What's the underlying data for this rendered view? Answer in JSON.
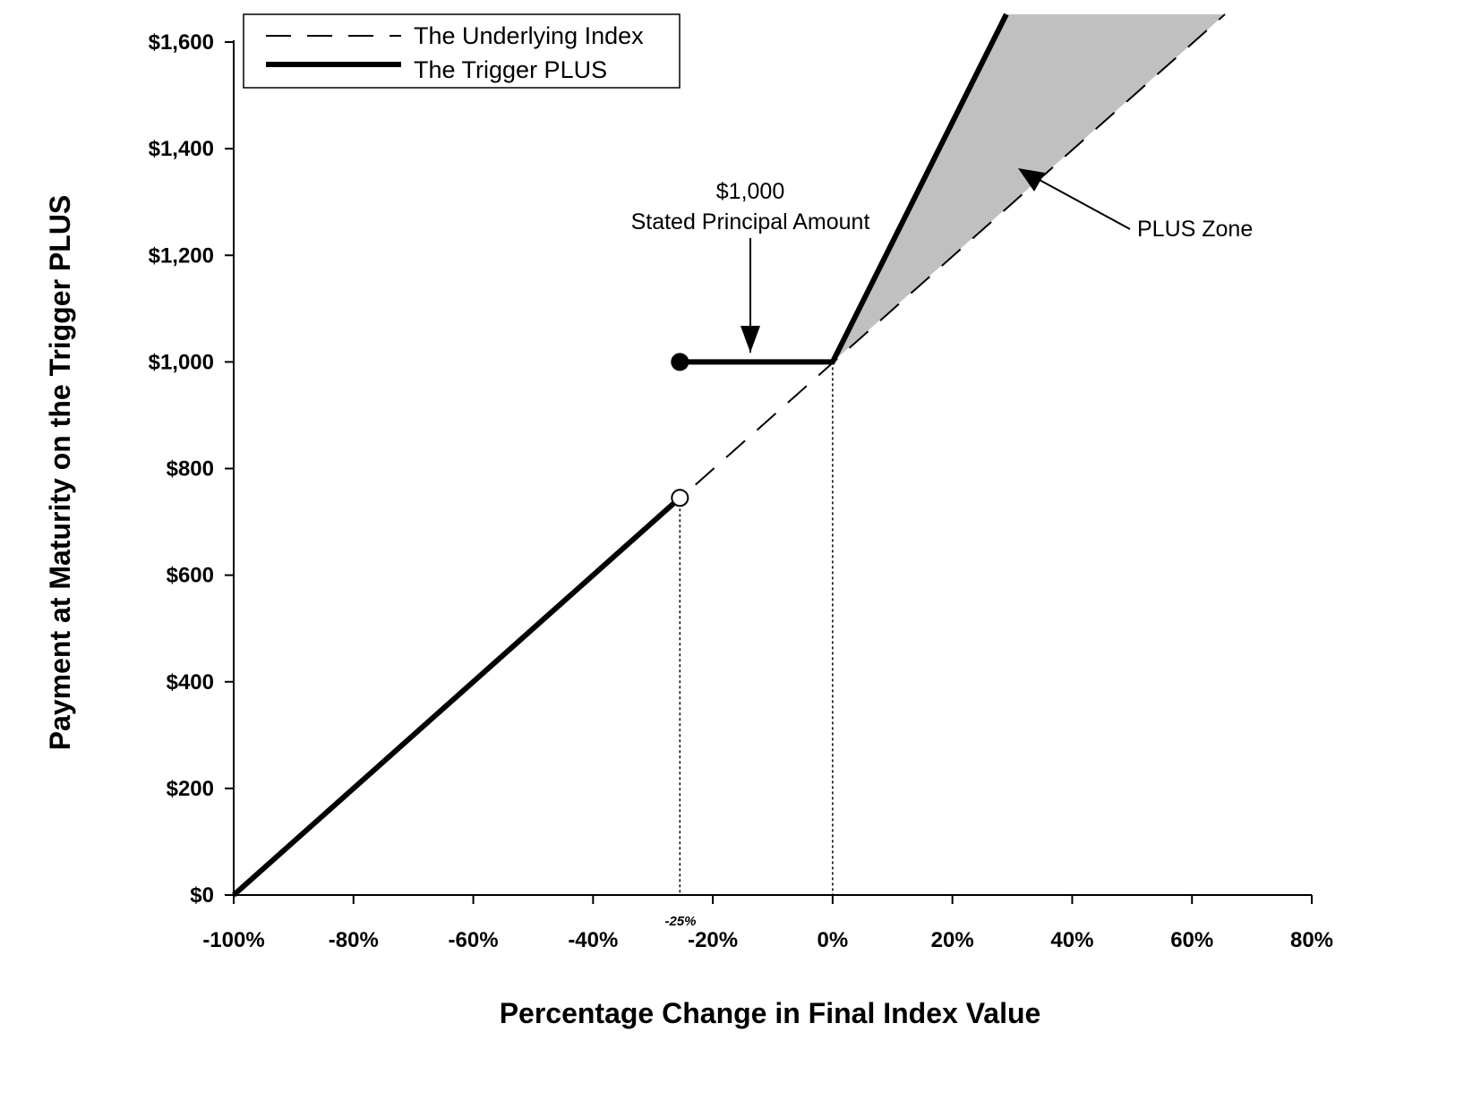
{
  "chart_data": {
    "type": "line",
    "xlabel": "Percentage Change in Final Index Value",
    "ylabel": "Payment at Maturity on the Trigger PLUS",
    "x_ticks": [
      -100,
      -80,
      -60,
      -40,
      -20,
      0,
      20,
      40,
      60,
      80
    ],
    "x_tick_labels": [
      "-100%",
      "-80%",
      "-60%",
      "-40%",
      "-20%",
      "0%",
      "20%",
      "40%",
      "60%",
      "80%"
    ],
    "y_ticks": [
      0,
      200,
      400,
      600,
      800,
      1000,
      1200,
      1400,
      1600
    ],
    "y_tick_labels": [
      "$0",
      "$200",
      "$400",
      "$600",
      "$800",
      "$1,000",
      "$1,200",
      "$1,400",
      "$1,600"
    ],
    "xlim": [
      -100,
      80
    ],
    "ylim": [
      0,
      1600
    ],
    "grid": false,
    "legend_position": "top-left",
    "series": [
      {
        "name": "The Underlying Index",
        "style": "dashed",
        "points": [
          [
            -100,
            0
          ],
          [
            65.5,
            1655
          ]
        ]
      },
      {
        "name": "The Trigger PLUS",
        "style": "solid-thick",
        "segments": [
          [
            [
              -100,
              0
            ],
            [
              -25.5,
              745
            ]
          ],
          [
            [
              -25.5,
              1000
            ],
            [
              0,
              1000
            ],
            [
              29,
              1655
            ]
          ]
        ]
      }
    ],
    "markers": [
      {
        "x": -25.5,
        "y": 1000,
        "fill": "filled"
      },
      {
        "x": -25.5,
        "y": 745,
        "fill": "open"
      }
    ],
    "reference_lines": [
      {
        "x": -25.5,
        "y_top": 745
      },
      {
        "x": 0,
        "y_top": 1000
      }
    ],
    "shaded_region": {
      "label": "PLUS Zone",
      "polygon": [
        [
          0,
          1000
        ],
        [
          29,
          1655
        ],
        [
          65.5,
          1655
        ]
      ],
      "color": "#c0c0c0"
    },
    "annotations": {
      "principal_line1": "$1,000",
      "principal_line2": "Stated Principal Amount",
      "plus_zone": "PLUS Zone",
      "trigger_tick": "-25%"
    },
    "colors": {
      "line": "#000000",
      "shade": "#c0c0c0",
      "background": "#ffffff"
    }
  }
}
